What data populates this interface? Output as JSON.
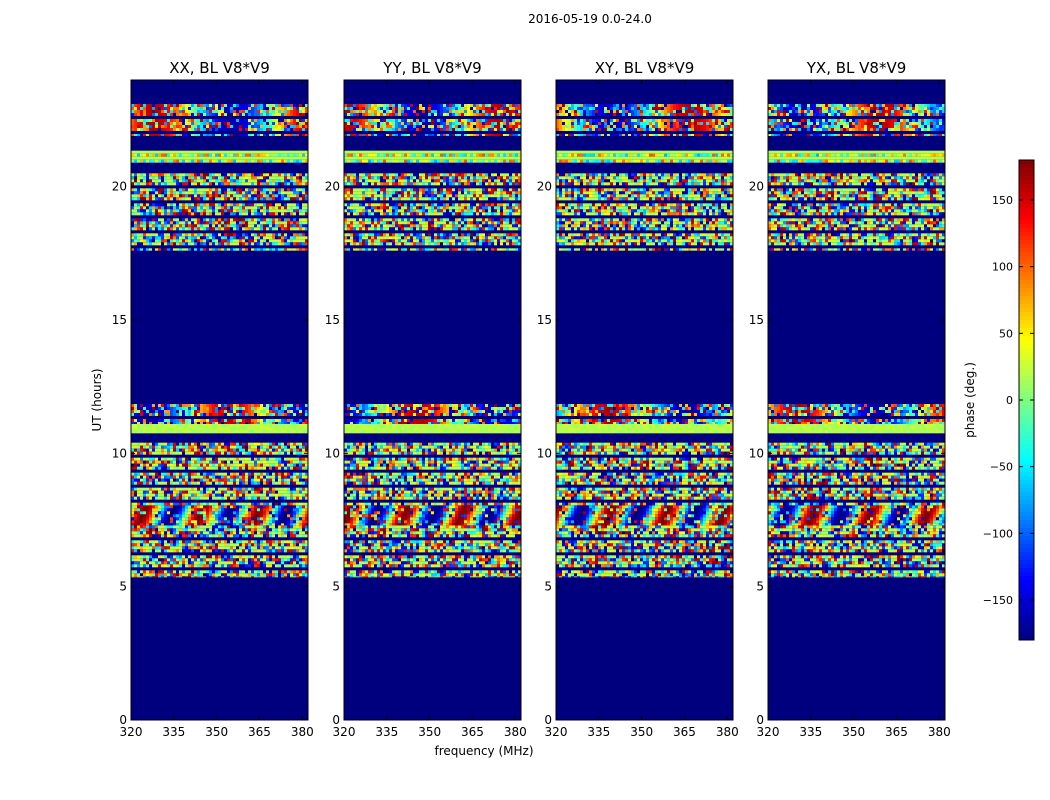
{
  "figure": {
    "suptitle": "2016-05-19 0.0-24.0",
    "xlabel": "frequency (MHz)",
    "ylabel": "UT (hours)",
    "colorbar_label": "phase (deg.)",
    "colormap": "jet",
    "background_color": "#00007f"
  },
  "chart_data": [
    {
      "type": "heatmap",
      "title": "XX, BL V8*V9",
      "polarization": "XX",
      "xlim": [
        320,
        382
      ],
      "ylim": [
        0,
        24
      ],
      "xticks": [
        320,
        335,
        350,
        365,
        380
      ],
      "yticks": [
        0,
        5,
        10,
        15,
        20
      ],
      "value_range": [
        -180,
        180
      ]
    },
    {
      "type": "heatmap",
      "title": "YY, BL V8*V9",
      "polarization": "YY",
      "xlim": [
        320,
        382
      ],
      "ylim": [
        0,
        24
      ],
      "xticks": [
        320,
        335,
        350,
        365,
        380
      ],
      "yticks": [
        0,
        5,
        10,
        15,
        20
      ],
      "value_range": [
        -180,
        180
      ]
    },
    {
      "type": "heatmap",
      "title": "XY, BL V8*V9",
      "polarization": "XY",
      "xlim": [
        320,
        382
      ],
      "ylim": [
        0,
        24
      ],
      "xticks": [
        320,
        335,
        350,
        365,
        380
      ],
      "yticks": [
        0,
        5,
        10,
        15,
        20
      ],
      "value_range": [
        -180,
        180
      ]
    },
    {
      "type": "heatmap",
      "title": "YX, BL V8*V9",
      "polarization": "YX",
      "xlim": [
        320,
        382
      ],
      "ylim": [
        0,
        24
      ],
      "xticks": [
        320,
        335,
        350,
        365,
        380
      ],
      "yticks": [
        0,
        5,
        10,
        15,
        20
      ],
      "value_range": [
        -180,
        180
      ]
    }
  ],
  "data_bands_ut": [
    {
      "from": 5.35,
      "to": 7.3,
      "kind": "noisy-striped"
    },
    {
      "from": 7.3,
      "to": 8.05,
      "kind": "fringe"
    },
    {
      "from": 8.05,
      "to": 10.4,
      "kind": "noisy-striped"
    },
    {
      "from": 10.75,
      "to": 11.1,
      "kind": "flat"
    },
    {
      "from": 11.1,
      "to": 11.85,
      "kind": "noisy-fringe"
    },
    {
      "from": 17.6,
      "to": 20.5,
      "kind": "noisy-striped"
    },
    {
      "from": 20.9,
      "to": 21.35,
      "kind": "striped"
    },
    {
      "from": 21.9,
      "to": 23.1,
      "kind": "noisy-fringe"
    }
  ],
  "colorbar": {
    "ticks": [
      150,
      100,
      50,
      0,
      -50,
      -100,
      -150
    ],
    "tick_labels": [
      "150",
      "100",
      "50",
      "0",
      "−50",
      "−100",
      "−150"
    ],
    "range": [
      -180,
      180
    ]
  }
}
